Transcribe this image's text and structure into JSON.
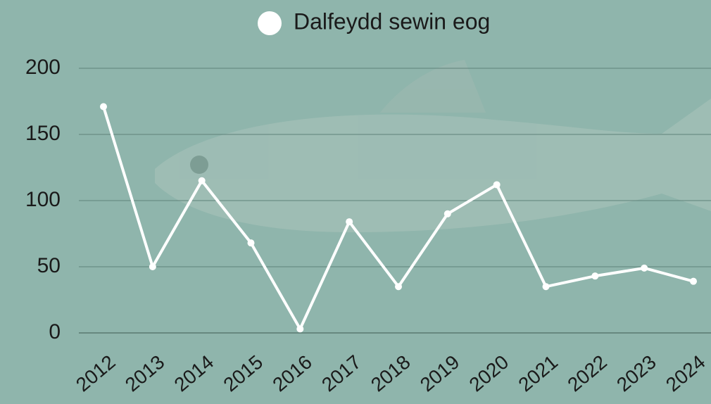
{
  "chart_data": {
    "type": "line",
    "categories": [
      "2012",
      "2013",
      "2014",
      "2015",
      "2016",
      "2017",
      "2018",
      "2019",
      "2020",
      "2021",
      "2022",
      "2023",
      "2024"
    ],
    "series": [
      {
        "name": "Dalfeydd sewin eog",
        "color": "#ffffff",
        "values": [
          171,
          50,
          115,
          68,
          3,
          84,
          35,
          90,
          112,
          35,
          43,
          49,
          39
        ]
      }
    ],
    "ylim": [
      0,
      200
    ],
    "yticks": [
      0,
      50,
      100,
      150,
      200
    ],
    "grid": true,
    "legend": "top"
  }
}
